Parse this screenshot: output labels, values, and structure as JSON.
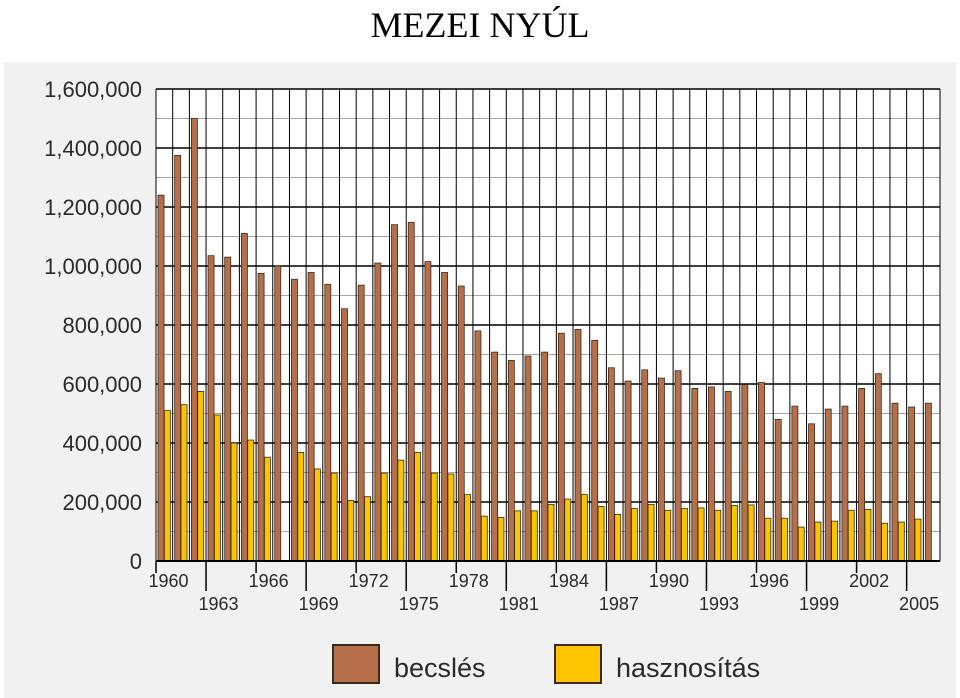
{
  "page_title": "MEZEI NYÚL",
  "chart_data": {
    "type": "bar",
    "title": "MEZEI NYÚL",
    "xlabel": "",
    "ylabel": "",
    "ylim": [
      0,
      1600000
    ],
    "yticks": [
      0,
      200000,
      400000,
      600000,
      800000,
      1000000,
      1200000,
      1400000,
      1600000
    ],
    "ytick_labels": [
      "0",
      "200,000",
      "400,000",
      "600,000",
      "800,000",
      "1,000,000",
      "1,200,000",
      "1,400,000",
      "1,600,000"
    ],
    "grid": true,
    "legend_position": "bottom-center",
    "categories": [
      1960,
      1961,
      1962,
      1963,
      1964,
      1965,
      1966,
      1967,
      1968,
      1969,
      1970,
      1971,
      1972,
      1973,
      1974,
      1975,
      1976,
      1977,
      1978,
      1979,
      1980,
      1981,
      1982,
      1983,
      1984,
      1985,
      1986,
      1987,
      1988,
      1989,
      1990,
      1991,
      1992,
      1993,
      1994,
      1995,
      1996,
      1997,
      1998,
      1999,
      2000,
      2001,
      2002,
      2003,
      2004,
      2005,
      2006
    ],
    "xtick_labels_upper": [
      "1960",
      "1966",
      "1972",
      "1978",
      "1984",
      "1990",
      "1996",
      "2002"
    ],
    "xtick_labels_lower": [
      "1963",
      "1969",
      "1975",
      "1981",
      "1987",
      "1993",
      "1999",
      "2005"
    ],
    "series": [
      {
        "name": "becslés",
        "color": "#b5704b",
        "values": [
          1240000,
          1375000,
          1500000,
          1035000,
          1030000,
          1110000,
          975000,
          1000000,
          955000,
          978000,
          938000,
          855000,
          935000,
          1010000,
          1140000,
          1148000,
          1015000,
          978000,
          932000,
          780000,
          708000,
          680000,
          695000,
          708000,
          772000,
          785000,
          748000,
          655000,
          610000,
          648000,
          620000,
          645000,
          585000,
          590000,
          575000,
          598000,
          605000,
          480000,
          525000,
          465000,
          515000,
          525000,
          585000,
          635000,
          535000,
          522000,
          535000
        ]
      },
      {
        "name": "hasznosítás",
        "color": "#fcc400",
        "values": [
          510000,
          530000,
          575000,
          495000,
          400000,
          410000,
          352000,
          null,
          368000,
          312000,
          298000,
          205000,
          218000,
          298000,
          342000,
          368000,
          298000,
          295000,
          225000,
          152000,
          148000,
          170000,
          170000,
          192000,
          210000,
          225000,
          185000,
          158000,
          178000,
          192000,
          172000,
          178000,
          180000,
          172000,
          188000,
          190000,
          145000,
          145000,
          115000,
          132000,
          135000,
          172000,
          175000,
          128000,
          132000,
          142000,
          null
        ]
      }
    ]
  }
}
